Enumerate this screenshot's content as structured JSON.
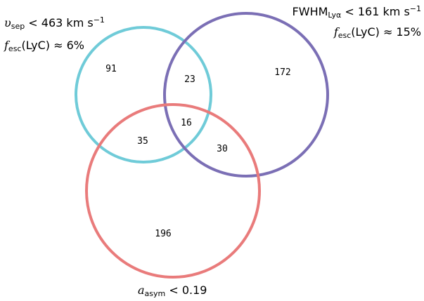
{
  "sets": {
    "vsep": {
      "color": "#6fcbd8",
      "symbol": "υ",
      "subscript": "sep",
      "relation": " < 463 km s",
      "exponent": "−1",
      "fesc_prefix": "f",
      "fesc_sub": "esc",
      "fesc_text": "(LyC) ≈ 6%"
    },
    "fwhm": {
      "color": "#7b6fb5",
      "symbol": "FWHM",
      "subscript": "Lyα",
      "relation": " < 161 km s",
      "exponent": "−1",
      "fesc_prefix": "f",
      "fesc_sub": "esc",
      "fesc_text": "(LyC) ≈ 15%"
    },
    "asym": {
      "color": "#e97b7b",
      "symbol": "a",
      "subscript": "asym",
      "relation": " < 0.19"
    }
  },
  "regions": {
    "vsep_only": "91",
    "vsep_fwhm": "23",
    "all_three": "16",
    "vsep_asym": "35",
    "fwhm_asym": "30",
    "fwhm_only": "172",
    "asym_only": "196"
  }
}
